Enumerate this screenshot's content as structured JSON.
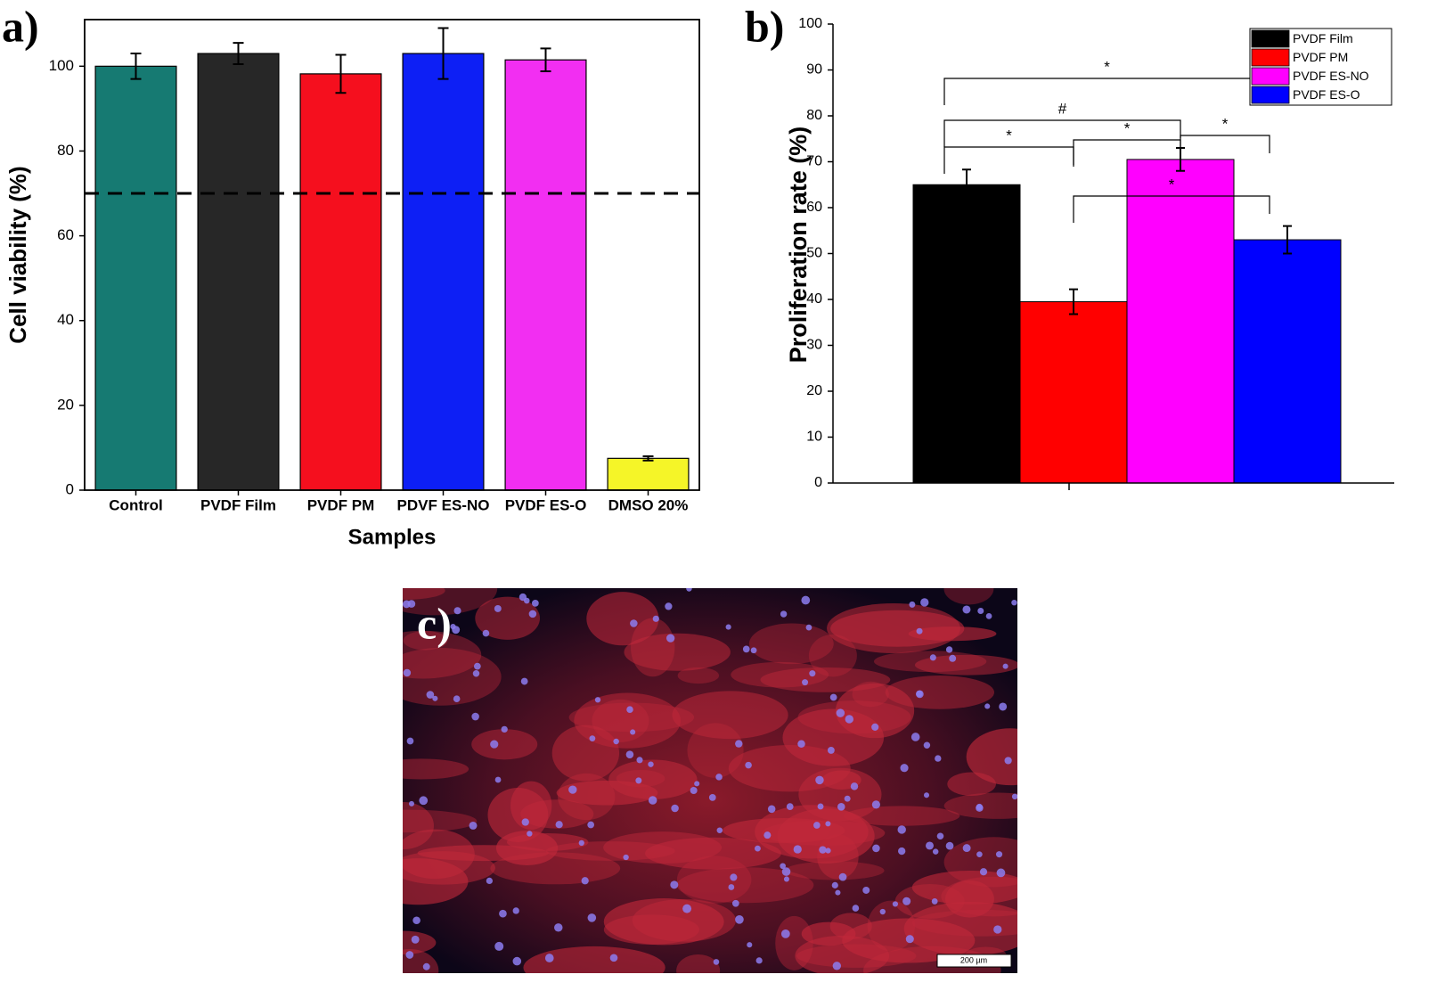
{
  "chart_data": [
    {
      "type": "bar",
      "panel_label": "a)",
      "ylabel": "Cell viability (%)",
      "xlabel": "Samples",
      "categories": [
        "Control",
        "PVDF Film",
        "PVDF PM",
        "PDVF ES-NO",
        "PVDF ES-O",
        "DMSO 20%"
      ],
      "values": [
        100,
        103,
        98.2,
        103,
        101.5,
        7.5
      ],
      "errors": [
        3,
        2.5,
        4.5,
        6,
        2.7,
        0.5
      ],
      "colors": [
        "#167a72",
        "#272727",
        "#f50f1e",
        "#0d1ff5",
        "#f22ef2",
        "#f5f528"
      ],
      "reference_line": 70,
      "ylim": [
        0,
        111
      ],
      "yticks": [
        0,
        20,
        40,
        60,
        80,
        100
      ]
    },
    {
      "type": "bar",
      "panel_label": "b)",
      "ylabel": "Proliferation rate (%)",
      "series": [
        {
          "name": "PVDF Film",
          "color": "#000000",
          "values": [
            65
          ],
          "errors": [
            3.3
          ]
        },
        {
          "name": "PVDF PM",
          "color": "#ff0000",
          "values": [
            39.5
          ],
          "errors": [
            2.7
          ]
        },
        {
          "name": "PVDF ES-NO",
          "color": "#ff00ff",
          "values": [
            70.5
          ],
          "errors": [
            2.5
          ]
        },
        {
          "name": "PVDF ES-O",
          "color": "#0000ff",
          "values": [
            53
          ],
          "errors": [
            3
          ]
        }
      ],
      "annotations": [
        {
          "from": 0,
          "to": 3,
          "label": "*"
        },
        {
          "from": 0,
          "to": 2,
          "label": "#"
        },
        {
          "from": 0,
          "to": 1,
          "label": "*"
        },
        {
          "from": 1,
          "to": 2,
          "label": "*"
        },
        {
          "from": 2,
          "to": 3,
          "label": "*"
        },
        {
          "from": 1,
          "to": 3,
          "label": "*"
        }
      ],
      "legend": "upper right",
      "ylim": [
        0,
        100
      ],
      "yticks": [
        0,
        10,
        20,
        30,
        40,
        50,
        60,
        70,
        80,
        90,
        100
      ]
    }
  ],
  "micrograph": {
    "panel_label": "c)",
    "scale_bar": "200 µm"
  }
}
